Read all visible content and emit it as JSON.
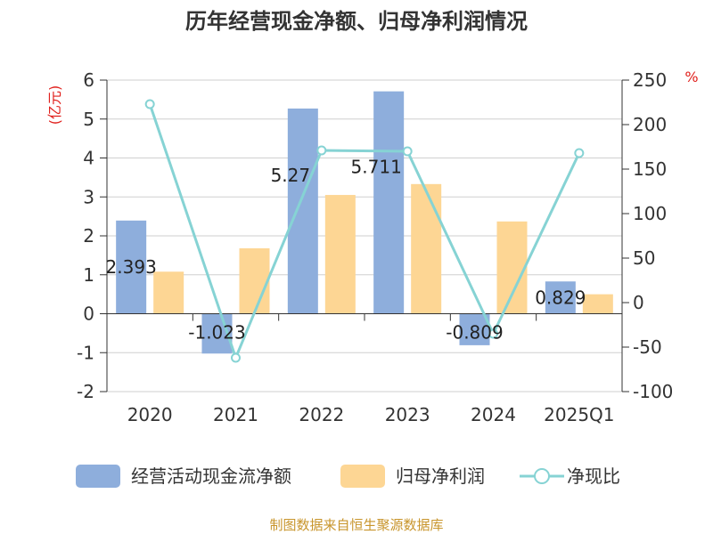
{
  "chart_data": {
    "type": "bar",
    "title": "历年经营现金净额、归母净利润情况",
    "categories": [
      "2020",
      "2021",
      "2022",
      "2023",
      "2024",
      "2025Q1"
    ],
    "left_axis": {
      "unit": "(亿元)",
      "ylim": [
        -2,
        6
      ],
      "ticks": [
        "6",
        "5",
        "4",
        "3",
        "2",
        "1",
        "0",
        "-1",
        "-2"
      ]
    },
    "right_axis": {
      "unit": "%",
      "ylim": [
        -100,
        250
      ],
      "ticks": [
        "250",
        "200",
        "150",
        "100",
        "50",
        "0",
        "-50",
        "-100"
      ]
    },
    "series": [
      {
        "name": "经营活动现金流净额",
        "type": "bar",
        "axis": "left",
        "color": "#8eaedc",
        "values": [
          2.393,
          -1.023,
          5.27,
          5.711,
          -0.809,
          0.829
        ],
        "labels": [
          "2.393",
          "-1.023",
          "5.27",
          "5.711",
          "-0.809",
          "0.829"
        ]
      },
      {
        "name": "归母净利润",
        "type": "bar",
        "axis": "left",
        "color": "#fdd694",
        "values": [
          1.08,
          1.68,
          3.05,
          3.33,
          2.37,
          0.5
        ]
      },
      {
        "name": "净现比",
        "type": "line",
        "axis": "right",
        "color": "#86d3d4",
        "values": [
          223,
          -62,
          171,
          170,
          -35,
          168
        ]
      }
    ],
    "grid": true,
    "legend_position": "bottom"
  },
  "footer": {
    "source": "制图数据来自恒生聚源数据库"
  }
}
